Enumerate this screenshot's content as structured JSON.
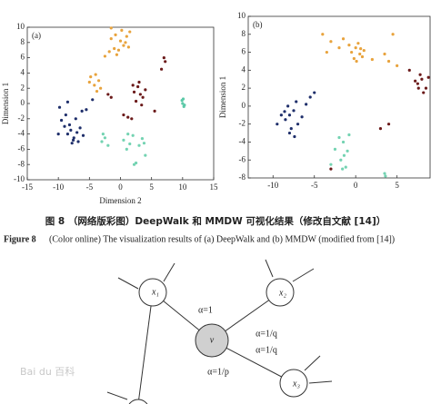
{
  "chart_data": [
    {
      "type": "scatter",
      "panel": "(a)",
      "xlabel": "Dimension 2",
      "ylabel": "Dimension 1",
      "xlim": [
        -15,
        15
      ],
      "xticks": [
        -15,
        -10,
        -5,
        0,
        5,
        10,
        15
      ],
      "ylim": [
        -10,
        10
      ],
      "yticks": [
        -10,
        -8,
        -6,
        -4,
        -2,
        0,
        2,
        4,
        6,
        8,
        10
      ],
      "series": [
        {
          "color": "#e8a33d",
          "x": [
            -1.5,
            -0.8,
            0,
            0.5,
            1,
            -1,
            -0.3,
            0.8,
            -1.8,
            0.2,
            1.3,
            -0.6,
            -4.8,
            -4,
            -3.5,
            -4.2,
            -3.2,
            -5,
            -3.8,
            -1.5,
            1.5,
            -2.5
          ],
          "y": [
            8.5,
            9,
            8.2,
            7.6,
            8.8,
            7.2,
            7,
            8,
            6.8,
            9.6,
            7.4,
            6.4,
            3.5,
            3.8,
            3,
            2.4,
            2,
            2.8,
            1.6,
            9.9,
            9.4,
            6.2
          ]
        },
        {
          "color": "#1f2f6b",
          "x": [
            -9,
            -8.5,
            -8,
            -7.5,
            -7,
            -6.8,
            -8.2,
            -7.8,
            -6.5,
            -9.5,
            -8.8,
            -7.2,
            -6,
            -9.8,
            -8.5,
            -5.5,
            -4.5,
            -10,
            -6.2,
            -7.6
          ],
          "y": [
            -3,
            -4,
            -3.5,
            -4.5,
            -3.8,
            -5,
            -2.8,
            -5.2,
            -3.2,
            -2.2,
            -1.5,
            -2,
            -4.2,
            -0.5,
            0.2,
            -0.8,
            0.5,
            -4,
            -1,
            -4.8
          ]
        },
        {
          "color": "#74d3b2",
          "x": [
            -3,
            -2.5,
            -2,
            0.5,
            1,
            1.5,
            2,
            2.5,
            3,
            3.5,
            4,
            2.2,
            1.2,
            3.8,
            -2.8
          ],
          "y": [
            -5,
            -4.5,
            -5.5,
            -4.8,
            -6,
            -5.3,
            -4.2,
            -7.8,
            -5.5,
            -4.6,
            -6.8,
            -8,
            -4,
            -5.2,
            -4
          ]
        },
        {
          "color": "#6b1a1a",
          "x": [
            2.2,
            2.8,
            3.2,
            3.6,
            2.5,
            3,
            4,
            3.4,
            2,
            7,
            7.2,
            6.6,
            0.5,
            1.2,
            -1.5,
            -2,
            1.8,
            5.5
          ],
          "y": [
            1.5,
            2.2,
            1.2,
            0.8,
            0.3,
            2.8,
            1.8,
            -0.2,
            2.4,
            6,
            5.5,
            4.5,
            -1.5,
            -1.8,
            0.8,
            1.2,
            -2,
            -1
          ]
        },
        {
          "color": "#5cc9a8",
          "x": [
            10,
            10.2,
            9.9,
            10.3,
            10.1
          ],
          "y": [
            0,
            -0.4,
            0.4,
            -0.2,
            0.6
          ]
        }
      ]
    },
    {
      "type": "scatter",
      "panel": "(b)",
      "ylabel": "Dimension 1",
      "xlim": [
        -13,
        9
      ],
      "xticks": [
        -10,
        -5,
        0,
        5
      ],
      "ylim": [
        -8,
        10
      ],
      "yticks": [
        -8,
        -6,
        -4,
        -2,
        0,
        2,
        4,
        6,
        8,
        10
      ],
      "series": [
        {
          "color": "#e8a33d",
          "x": [
            -0.5,
            0,
            0.5,
            1,
            -0.2,
            0.3,
            0.8,
            -0.8,
            0.1,
            0.6,
            -4,
            -3,
            -2,
            4,
            5,
            3.5,
            4.5,
            -3.5,
            -1.5,
            2
          ],
          "y": [
            6,
            6.5,
            5.8,
            6.2,
            5.3,
            7,
            5.5,
            6.8,
            5,
            6.4,
            8,
            7.2,
            6.5,
            5,
            4.5,
            5.8,
            8,
            6,
            7.5,
            5.2
          ]
        },
        {
          "color": "#1f2f6b",
          "x": [
            -8,
            -7.5,
            -8.5,
            -7,
            -8.2,
            -7.8,
            -9,
            -6.5,
            -8,
            -7.2,
            -9.5,
            -6,
            -5.5,
            -5,
            -8.6,
            -7.4
          ],
          "y": [
            -1,
            -0.5,
            -1.5,
            -2,
            0,
            -2.5,
            -1,
            -1.2,
            -3,
            0.5,
            -2,
            0.2,
            1,
            1.5,
            -0.6,
            -3.4
          ]
        },
        {
          "color": "#74d3b2",
          "x": [
            -2,
            -1.5,
            -1,
            -1.8,
            -1.2,
            -2.5,
            -0.8,
            -1.6,
            -3,
            3.5,
            3.6,
            -1.4
          ],
          "y": [
            -3.5,
            -4,
            -5,
            -6,
            -6.8,
            -4.8,
            -3.2,
            -7,
            -6.5,
            -7.5,
            -7.8,
            -5.5
          ]
        },
        {
          "color": "#6b1a1a",
          "x": [
            7.5,
            8,
            8.5,
            7.8,
            8.2,
            7.2,
            8.8,
            7.6,
            4,
            -3,
            3,
            6.5
          ],
          "y": [
            2.5,
            3,
            2,
            3.5,
            1.5,
            2.8,
            3.2,
            2,
            -2,
            -7,
            -2.5,
            4
          ]
        }
      ]
    }
  ],
  "caption": {
    "cn": "图 8 （网络版彩图）DeepWalk 和 MMDW 可视化结果（修改自文献 [14]）",
    "en_label": "Figure 8",
    "en": "(Color online) The visualization results of (a) DeepWalk and (b) MMDW (modified from [14])"
  },
  "diagram": {
    "nodes": [
      "x₁",
      "x₂",
      "v",
      "x₃"
    ],
    "edges": [
      "α=1",
      "α=1/q",
      "α=1/q",
      "α=1/p"
    ]
  },
  "watermark": "Bai du 百科"
}
